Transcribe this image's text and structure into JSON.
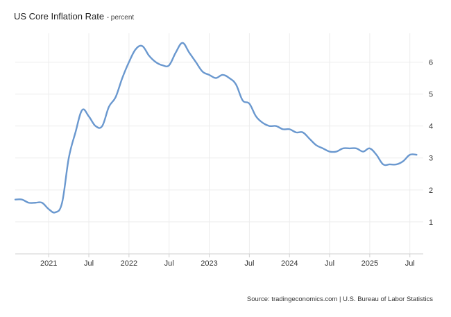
{
  "title": "US Core Inflation Rate",
  "subtitle": "- percent",
  "source": "Source: tradingeconomics.com | U.S. Bureau of Labor Statistics",
  "colors": {
    "line": "#6a98cf",
    "grid": "#ececec",
    "axis": "#cfcfcf",
    "tick_text": "#333333"
  },
  "chart_data": {
    "type": "line",
    "title": "US Core Inflation Rate",
    "subtitle": "- percent",
    "xlabel": "",
    "ylabel": "",
    "ylim": [
      0,
      6.9
    ],
    "y_ticks": [
      1,
      2,
      3,
      4,
      5,
      6
    ],
    "y_axis_side": "right",
    "grid": true,
    "x_ticks": [
      {
        "label": "2021",
        "date": "2021-01"
      },
      {
        "label": "Jul",
        "date": "2021-07"
      },
      {
        "label": "2022",
        "date": "2022-01"
      },
      {
        "label": "Jul",
        "date": "2022-07"
      },
      {
        "label": "2023",
        "date": "2023-01"
      },
      {
        "label": "Jul",
        "date": "2023-07"
      },
      {
        "label": "2024",
        "date": "2024-01"
      },
      {
        "label": "Jul",
        "date": "2024-07"
      },
      {
        "label": "2025",
        "date": "2025-01"
      },
      {
        "label": "Jul",
        "date": "2025-07"
      }
    ],
    "series": [
      {
        "x": [
          "2020-08",
          "2020-09",
          "2020-10",
          "2020-11",
          "2020-12",
          "2021-01",
          "2021-02",
          "2021-03",
          "2021-04",
          "2021-05",
          "2021-06",
          "2021-07",
          "2021-08",
          "2021-09",
          "2021-10",
          "2021-11",
          "2021-12",
          "2022-01",
          "2022-02",
          "2022-03",
          "2022-04",
          "2022-05",
          "2022-06",
          "2022-07",
          "2022-08",
          "2022-09",
          "2022-10",
          "2022-11",
          "2022-12",
          "2023-01",
          "2023-02",
          "2023-03",
          "2023-04",
          "2023-05",
          "2023-06",
          "2023-07",
          "2023-08",
          "2023-09",
          "2023-10",
          "2023-11",
          "2023-12",
          "2024-01",
          "2024-02",
          "2024-03",
          "2024-04",
          "2024-05",
          "2024-06",
          "2024-07",
          "2024-08",
          "2024-09",
          "2024-10",
          "2024-11",
          "2024-12",
          "2025-01",
          "2025-02",
          "2025-03",
          "2025-04",
          "2025-05",
          "2025-06",
          "2025-07",
          "2025-08"
        ],
        "values": [
          1.7,
          1.7,
          1.6,
          1.6,
          1.6,
          1.4,
          1.3,
          1.6,
          3.0,
          3.8,
          4.5,
          4.3,
          4.0,
          4.0,
          4.6,
          4.9,
          5.5,
          6.0,
          6.4,
          6.5,
          6.2,
          6.0,
          5.9,
          5.9,
          6.3,
          6.6,
          6.3,
          6.0,
          5.7,
          5.6,
          5.5,
          5.6,
          5.5,
          5.3,
          4.8,
          4.7,
          4.3,
          4.1,
          4.0,
          4.0,
          3.9,
          3.9,
          3.8,
          3.8,
          3.6,
          3.4,
          3.3,
          3.2,
          3.2,
          3.3,
          3.3,
          3.3,
          3.2,
          3.3,
          3.1,
          2.8,
          2.8,
          2.8,
          2.9,
          3.1,
          3.1
        ]
      }
    ]
  }
}
